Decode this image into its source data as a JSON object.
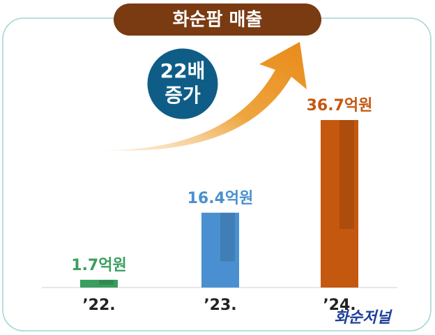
{
  "chart_data": {
    "type": "bar",
    "title": "화순팜 매출",
    "categories": [
      "’22.",
      "’23.",
      "’24."
    ],
    "values": [
      1.7,
      16.4,
      36.7
    ],
    "value_labels": [
      "1.7억원",
      "16.4억원",
      "36.7억원"
    ],
    "colors": [
      "#3a9e5f",
      "#4a90d0",
      "#c4580f"
    ],
    "annotation": [
      "22배",
      "증가"
    ],
    "watermark": "화순저널"
  }
}
